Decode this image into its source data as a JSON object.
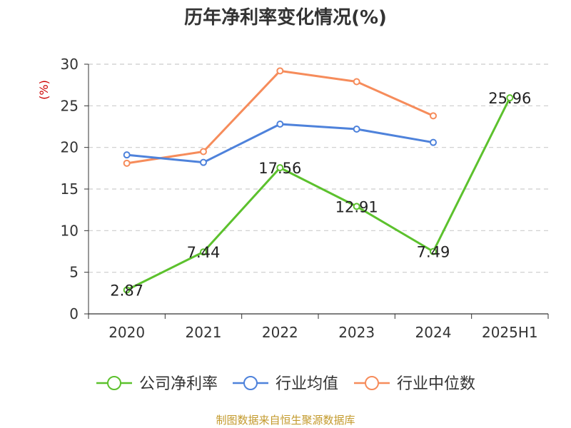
{
  "title": "历年净利率变化情况(%)",
  "source": "制图数据来自恒生聚源数据库",
  "chart_data": {
    "type": "line",
    "title": "历年净利率变化情况(%)",
    "ylabel": "(%)",
    "xlabel": "",
    "categories": [
      "2020",
      "2021",
      "2022",
      "2023",
      "2024",
      "2025H1"
    ],
    "ylim": [
      0,
      30
    ],
    "yticks": [
      0,
      5,
      10,
      15,
      20,
      25,
      30
    ],
    "grid": true,
    "legend_position": "bottom",
    "series": [
      {
        "name": "公司净利率",
        "color": "#5cc12d",
        "values": [
          2.87,
          7.44,
          17.56,
          12.91,
          7.49,
          25.96
        ],
        "labels": [
          "2.87",
          "7.44",
          "17.56",
          "12.91",
          "7.49",
          "25.96"
        ],
        "show_labels": true
      },
      {
        "name": "行业均值",
        "color": "#4e82db",
        "values": [
          19.1,
          18.2,
          22.8,
          22.2,
          20.6,
          null
        ],
        "show_labels": false
      },
      {
        "name": "行业中位数",
        "color": "#f68c5b",
        "values": [
          18.1,
          19.5,
          29.2,
          27.9,
          23.8,
          null
        ],
        "show_labels": false
      }
    ],
    "ylabel_color": "#cc0000"
  }
}
